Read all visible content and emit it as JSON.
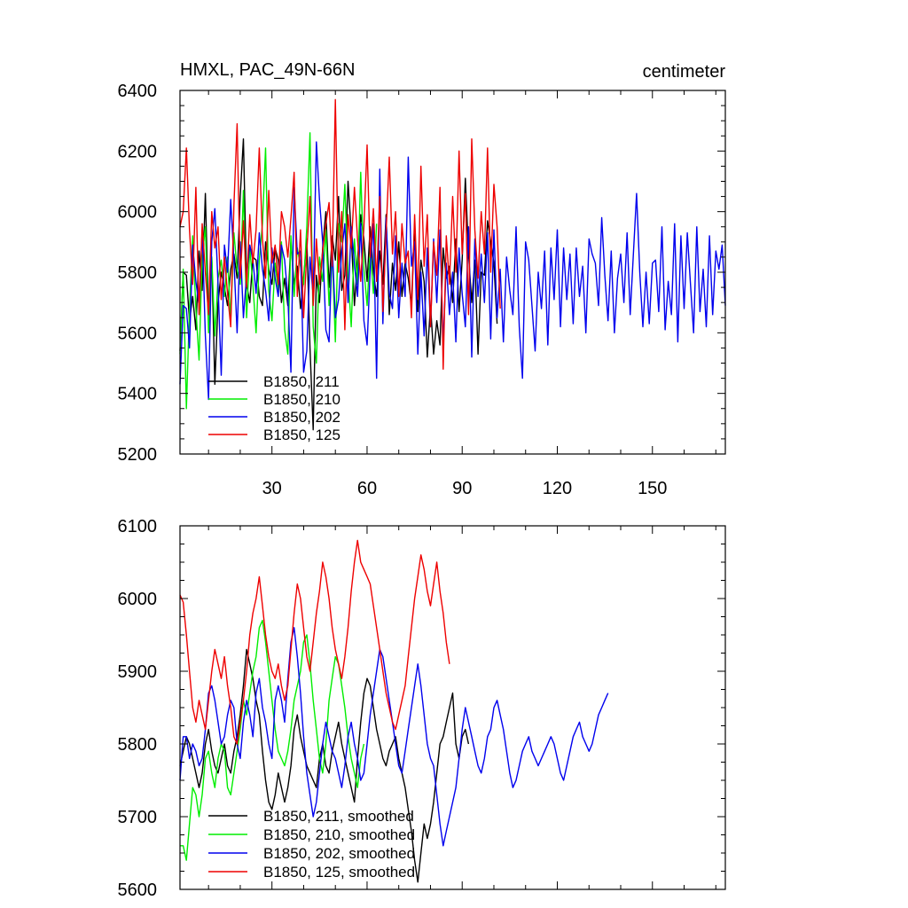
{
  "chart_data": [
    {
      "type": "line",
      "title": "HMXL, PAC_49N-66N",
      "units": "centimeter",
      "xlim": [
        1,
        173
      ],
      "ylim": [
        5200,
        6400
      ],
      "xticks": [
        30,
        60,
        90,
        120,
        150
      ],
      "xtick_labels": [
        "30",
        "60",
        "90",
        "120",
        "150"
      ],
      "yticks": [
        5200,
        5400,
        5600,
        5800,
        6000,
        6200,
        6400
      ],
      "ytick_labels": [
        "5200",
        "5400",
        "5600",
        "5800",
        "6000",
        "6200",
        "6400"
      ],
      "series": [
        {
          "name": "B1850, 211",
          "color": "#000000",
          "values": [
            5540,
            5800,
            5790,
            5640,
            5720,
            5610,
            5870,
            5740,
            6060,
            5650,
            5850,
            5430,
            5700,
            5800,
            5750,
            5690,
            5810,
            5860,
            5780,
            6050,
            6240,
            5760,
            5700,
            5850,
            5840,
            5720,
            5690,
            5900,
            5810,
            5760,
            5880,
            5840,
            5700,
            5780,
            5690,
            5900,
            5760,
            5820,
            5680,
            5780,
            5910,
            5550,
            5280,
            5790,
            5700,
            5880,
            6000,
            5750,
            5920,
            5840,
            6050,
            5740,
            5790,
            6100,
            5930,
            5690,
            5840,
            5990,
            5910,
            5770,
            5950,
            5800,
            5720,
            5870,
            5760,
            5990,
            5660,
            5830,
            5740,
            5900,
            5720,
            5830,
            5780,
            5690,
            5960,
            5670,
            5840,
            5770,
            5520,
            5690,
            5530,
            5640,
            5560,
            5880,
            5780,
            5820,
            5700,
            5910,
            5670,
            5840,
            6110,
            5860,
            5700,
            5840,
            5530,
            5800,
            5790,
            5970,
            5900,
            5830,
            5630
          ]
        },
        {
          "name": "B1850, 210",
          "color": "#00ee00",
          "values": [
            5530,
            5810,
            5350,
            5680,
            5920,
            5680,
            5510,
            5850,
            5950,
            5600,
            5850,
            5590,
            5780,
            5840,
            5720,
            5850,
            5640,
            5930,
            5810,
            5760,
            6070,
            5650,
            5880,
            5760,
            5600,
            5840,
            5960,
            6210,
            5740,
            5640,
            5830,
            5740,
            5900,
            5610,
            5530,
            5920,
            5720,
            5880,
            5820,
            5760,
            5950,
            6260,
            5620,
            5500,
            5850,
            5770,
            5940,
            5690,
            5870,
            5570,
            5960,
            5900,
            6090,
            5790,
            5620,
            5910,
            5760,
            6130,
            5810,
            5690,
            5880,
            5730,
            5960
          ]
        },
        {
          "name": "B1850, 202",
          "color": "#0000ee",
          "values": [
            5430,
            5690,
            5680,
            5550,
            5890,
            5770,
            5690,
            5940,
            5590,
            5380,
            5900,
            6010,
            5760,
            5460,
            5890,
            5800,
            6040,
            5840,
            5600,
            5900,
            5650,
            5790,
            5890,
            5840,
            5730,
            5930,
            5810,
            5740,
            5640,
            5880,
            5780,
            5720,
            5890,
            5840,
            5720,
            5470,
            6080,
            5860,
            5870,
            5470,
            5540,
            5850,
            5720,
            6230,
            6040,
            5900,
            5610,
            5570,
            5890,
            5650,
            5710,
            5870,
            5960,
            5700,
            5950,
            5830,
            5720,
            5960,
            5640,
            5560,
            5810,
            5960,
            5450,
            6140,
            5630,
            5980,
            5730,
            5680,
            5920,
            5650,
            5830,
            5720,
            6180,
            5820,
            5900,
            5530,
            5800,
            5590,
            5880,
            5620,
            5910,
            5700,
            5940,
            5560,
            5830,
            5660,
            5800,
            5570,
            5880,
            5730,
            5620,
            5950,
            5520,
            5910,
            5720,
            5860,
            5700,
            5930,
            5580,
            5940,
            5650,
            5810,
            5570,
            5850,
            5740,
            5660,
            5950,
            5620,
            5450,
            5900,
            5840,
            5690,
            5540,
            5800,
            5680,
            5870,
            5560,
            5880,
            5710,
            5940,
            5620,
            5880,
            5710,
            5860,
            5630,
            5880,
            5720,
            5820,
            5600,
            5910,
            5860,
            5830,
            5690,
            5980,
            5790,
            5640,
            5870,
            5600,
            5780,
            5860,
            5700,
            5930,
            5660,
            5860,
            6060,
            5800,
            5620,
            5800,
            5630,
            5830,
            5840,
            5670,
            5950,
            5610,
            5770,
            5660,
            5960,
            5570,
            5920,
            5680,
            5930,
            5760,
            5600,
            5950,
            5670,
            5810,
            5620,
            5920,
            5660,
            5870,
            5810,
            5890,
            5690
          ]
        },
        {
          "name": "B1850, 125",
          "color": "#ee0000",
          "values": [
            5950,
            6000,
            6210,
            5940,
            5760,
            6080,
            5660,
            5960,
            5800,
            5660,
            6000,
            5880,
            5950,
            5710,
            5850,
            5730,
            5620,
            6020,
            6290,
            5780,
            5970,
            5750,
            5990,
            5830,
            5940,
            6210,
            5910,
            5780,
            6070,
            5830,
            5890,
            5760,
            6000,
            5950,
            5850,
            5980,
            6130,
            5720,
            5940,
            5650,
            5870,
            6050,
            5690,
            5910,
            5760,
            5870,
            5960,
            6030,
            5820,
            6370,
            5800,
            6000,
            5610,
            5990,
            5880,
            6080,
            5910,
            5770,
            5950,
            6220,
            5850,
            6010,
            5770,
            6050,
            5670,
            5930,
            6180,
            5860,
            6000,
            5720,
            5960,
            5830,
            5870,
            5650,
            5990,
            5710,
            6150,
            5820,
            5990,
            5620,
            5900,
            5790,
            6080,
            5480,
            5920,
            5760,
            6050,
            5800,
            6200,
            5860,
            6060,
            5660,
            6240,
            5940,
            5780,
            6000,
            5860,
            6210,
            5800,
            6090,
            5950,
            5680
          ]
        }
      ],
      "legend": [
        "B1850, 211",
        "B1850, 210",
        "B1850, 202",
        "B1850, 125"
      ]
    },
    {
      "type": "line",
      "title": "",
      "xlim": [
        1,
        173
      ],
      "ylim": [
        5600,
        6100
      ],
      "xticks": [
        30,
        60,
        90,
        120,
        150
      ],
      "yticks": [
        5600,
        5700,
        5800,
        5900,
        6000,
        6100
      ],
      "ytick_labels": [
        "5600",
        "5700",
        "5800",
        "5900",
        "6000",
        "6100"
      ],
      "series": [
        {
          "name": "B1850, 211, smoothed",
          "color": "#000000",
          "values": [
            5770,
            5790,
            5810,
            5800,
            5780,
            5760,
            5740,
            5760,
            5800,
            5820,
            5790,
            5770,
            5760,
            5780,
            5800,
            5770,
            5760,
            5790,
            5810,
            5840,
            5880,
            5930,
            5910,
            5890,
            5860,
            5840,
            5790,
            5750,
            5720,
            5710,
            5730,
            5760,
            5740,
            5720,
            5740,
            5770,
            5820,
            5840,
            5810,
            5790,
            5770,
            5760,
            5750,
            5740,
            5780,
            5800,
            5770,
            5760,
            5790,
            5810,
            5830,
            5800,
            5780,
            5760,
            5740,
            5720,
            5780,
            5830,
            5870,
            5890,
            5880,
            5850,
            5820,
            5800,
            5780,
            5770,
            5790,
            5800,
            5810,
            5780,
            5760,
            5740,
            5710,
            5680,
            5640,
            5610,
            5650,
            5690,
            5670,
            5690,
            5720,
            5760,
            5800,
            5810,
            5830,
            5850,
            5870,
            5800,
            5780,
            5810,
            5820,
            5800
          ]
        },
        {
          "name": "B1850, 210, smoothed",
          "color": "#00ee00",
          "values": [
            5660,
            5660,
            5640,
            5690,
            5740,
            5730,
            5700,
            5730,
            5780,
            5790,
            5760,
            5740,
            5780,
            5800,
            5790,
            5740,
            5730,
            5760,
            5790,
            5820,
            5860,
            5840,
            5870,
            5900,
            5920,
            5960,
            5970,
            5940,
            5900,
            5860,
            5820,
            5790,
            5780,
            5770,
            5790,
            5820,
            5860,
            5880,
            5900,
            5940,
            5950,
            5910,
            5860,
            5820,
            5780,
            5760,
            5800,
            5860,
            5890,
            5920,
            5910,
            5880,
            5850,
            5810,
            5780,
            5760,
            5740,
            5780,
            5800
          ]
        },
        {
          "name": "B1850, 202, smoothed",
          "color": "#0000ee",
          "values": [
            5750,
            5810,
            5810,
            5780,
            5800,
            5790,
            5770,
            5780,
            5820,
            5870,
            5880,
            5860,
            5830,
            5800,
            5810,
            5840,
            5860,
            5850,
            5800,
            5780,
            5830,
            5860,
            5840,
            5810,
            5870,
            5890,
            5850,
            5830,
            5800,
            5780,
            5860,
            5880,
            5860,
            5830,
            5890,
            5940,
            5960,
            5920,
            5870,
            5810,
            5760,
            5730,
            5700,
            5720,
            5760,
            5800,
            5830,
            5810,
            5790,
            5780,
            5760,
            5740,
            5770,
            5810,
            5830,
            5800,
            5780,
            5750,
            5760,
            5800,
            5840,
            5870,
            5900,
            5930,
            5920,
            5890,
            5860,
            5830,
            5800,
            5770,
            5760,
            5790,
            5820,
            5850,
            5880,
            5910,
            5880,
            5840,
            5800,
            5780,
            5770,
            5730,
            5690,
            5660,
            5680,
            5700,
            5720,
            5740,
            5780,
            5820,
            5850,
            5830,
            5810,
            5790,
            5770,
            5760,
            5780,
            5810,
            5820,
            5850,
            5860,
            5840,
            5820,
            5790,
            5760,
            5740,
            5750,
            5770,
            5790,
            5800,
            5810,
            5790,
            5780,
            5770,
            5780,
            5790,
            5800,
            5810,
            5800,
            5780,
            5760,
            5750,
            5770,
            5790,
            5810,
            5820,
            5830,
            5810,
            5800,
            5790,
            5800,
            5820,
            5840,
            5850,
            5860,
            5870
          ]
        },
        {
          "name": "B1850, 125, smoothed",
          "color": "#ee0000",
          "values": [
            6005,
            5995,
            5950,
            5900,
            5850,
            5830,
            5860,
            5840,
            5820,
            5860,
            5900,
            5930,
            5910,
            5890,
            5920,
            5880,
            5850,
            5810,
            5800,
            5830,
            5860,
            5900,
            5950,
            5980,
            6000,
            6030,
            5990,
            5950,
            5920,
            5900,
            5890,
            5910,
            5880,
            5860,
            5880,
            5930,
            5980,
            6020,
            6000,
            5960,
            5920,
            5900,
            5940,
            5980,
            6010,
            6050,
            6030,
            6000,
            5960,
            5930,
            5910,
            5890,
            5920,
            5960,
            6010,
            6050,
            6080,
            6050,
            6040,
            6030,
            6020,
            5990,
            5960,
            5930,
            5900,
            5870,
            5850,
            5830,
            5820,
            5840,
            5860,
            5880,
            5920,
            5960,
            6000,
            6030,
            6060,
            6040,
            6010,
            5990,
            6020,
            6050,
            6010,
            5980,
            5940,
            5910
          ]
        }
      ],
      "legend": [
        "B1850, 211, smoothed",
        "B1850, 210, smoothed",
        "B1850, 202, smoothed",
        "B1850, 125, smoothed"
      ]
    }
  ]
}
